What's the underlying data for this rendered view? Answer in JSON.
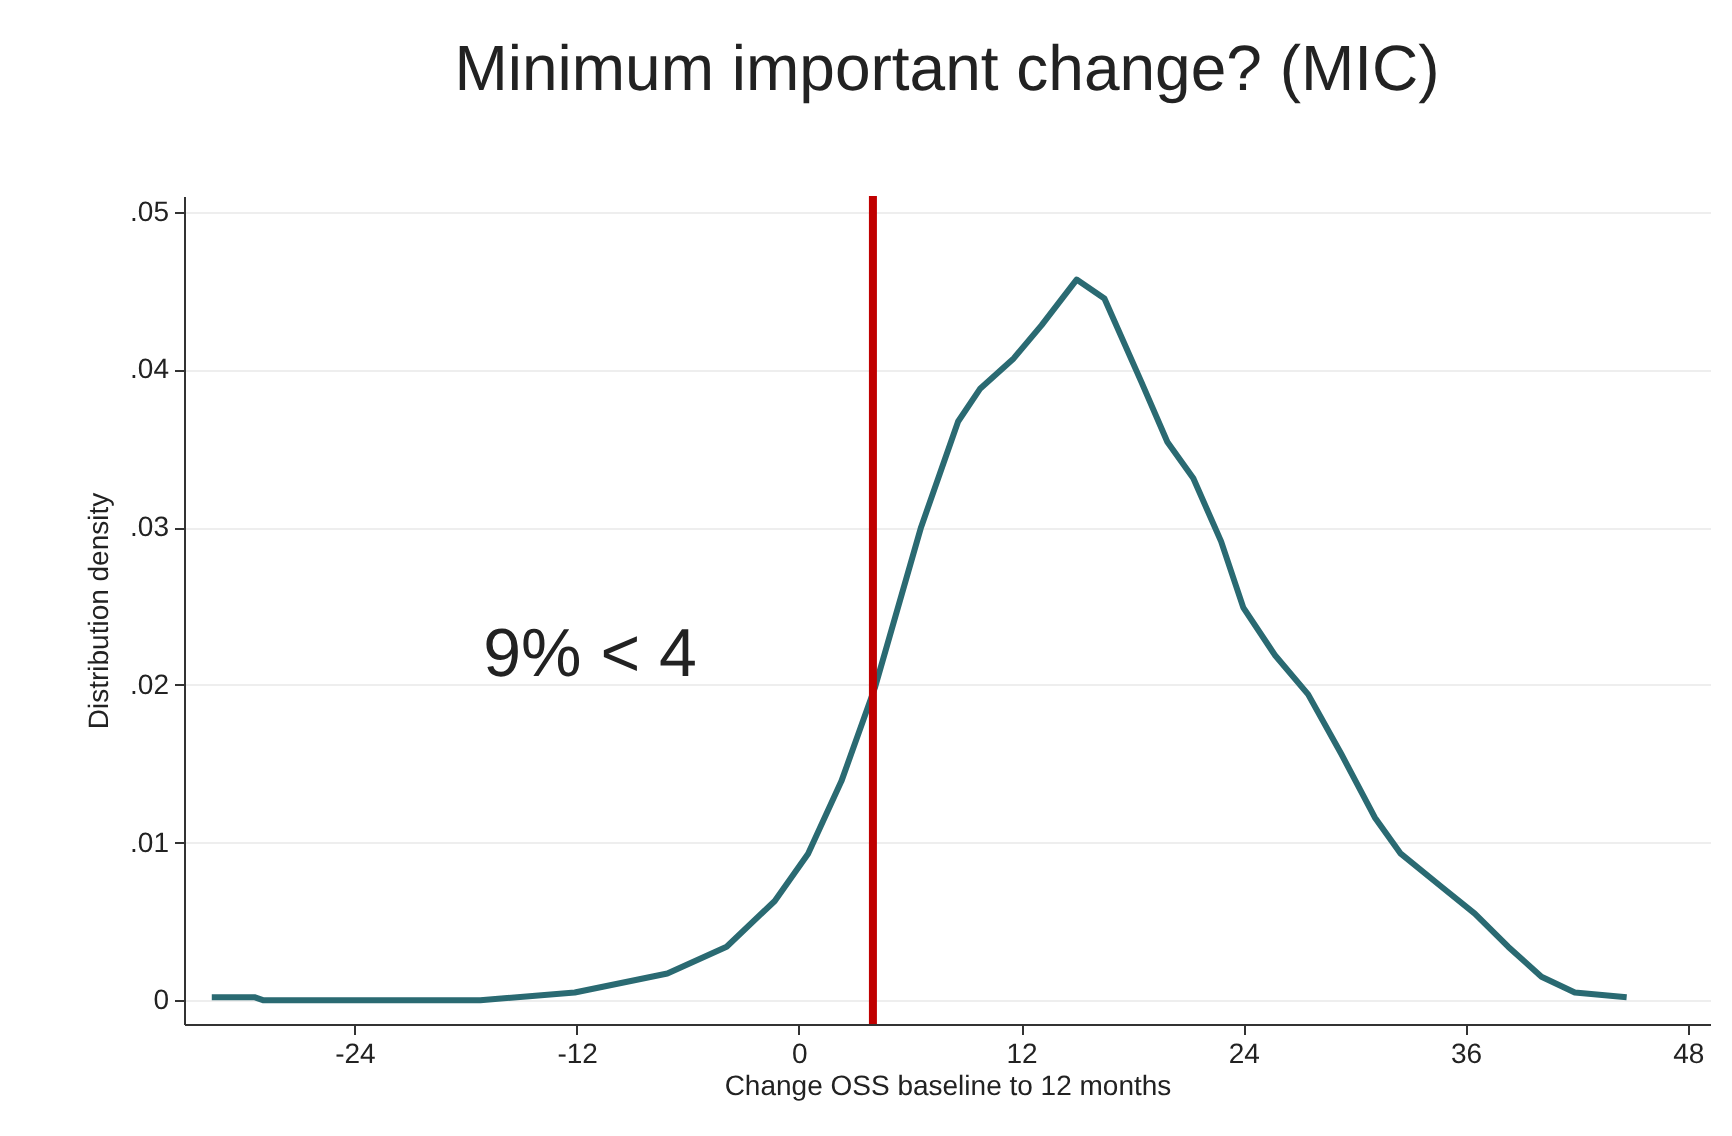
{
  "chart_data": {
    "type": "line",
    "title": "Minimum important change? (MIC)",
    "xlabel": "Change OSS baseline to 12 months",
    "ylabel": "Distribution density",
    "x": [
      -31.7,
      -29.4,
      -28.9,
      -17.2,
      -12.1,
      -7.1,
      -3.9,
      -1.3,
      0.5,
      2.3,
      4.1,
      6.6,
      8.6,
      9.8,
      11.6,
      13.1,
      15.0,
      16.5,
      18.5,
      19.9,
      21.3,
      22.8,
      24.0,
      25.7,
      27.5,
      29.3,
      31.1,
      32.5,
      34.7,
      36.5,
      38.3,
      40.1,
      41.9,
      44.7
    ],
    "series": [
      {
        "color": "#2a6a72",
        "values": [
          0.0002,
          0.0002,
          0,
          0,
          0.0005,
          0.0017,
          0.0034,
          0.0063,
          0.0093,
          0.0139,
          0.0198,
          0.03,
          0.0367,
          0.0388,
          0.0407,
          0.0428,
          0.0457,
          0.0445,
          0.0392,
          0.0354,
          0.0331,
          0.0291,
          0.0249,
          0.0219,
          0.0194,
          0.0156,
          0.0116,
          0.0093,
          0.0072,
          0.0055,
          0.0034,
          0.0015,
          0.0005,
          0.0002
        ]
      }
    ],
    "xlim": [
      -33.2,
      49.2
    ],
    "xticks": [
      -24,
      -12,
      0,
      12,
      24,
      36,
      48
    ],
    "ylim": [
      -0.0015,
      0.051
    ],
    "yticks": [
      {
        "value": 0,
        "label": "0"
      },
      {
        "value": 0.01,
        "label": ".01"
      },
      {
        "value": 0.02,
        "label": ".02"
      },
      {
        "value": 0.03,
        "label": ".03"
      },
      {
        "value": 0.04,
        "label": ".04"
      },
      {
        "value": 0.05,
        "label": ".05"
      }
    ],
    "grid": "y",
    "marker": "none",
    "line_style": "solid",
    "ref_lines": [
      {
        "axis": "x",
        "value": 4,
        "color": "#c00000"
      }
    ],
    "annotations": [
      "9% < 4"
    ]
  }
}
